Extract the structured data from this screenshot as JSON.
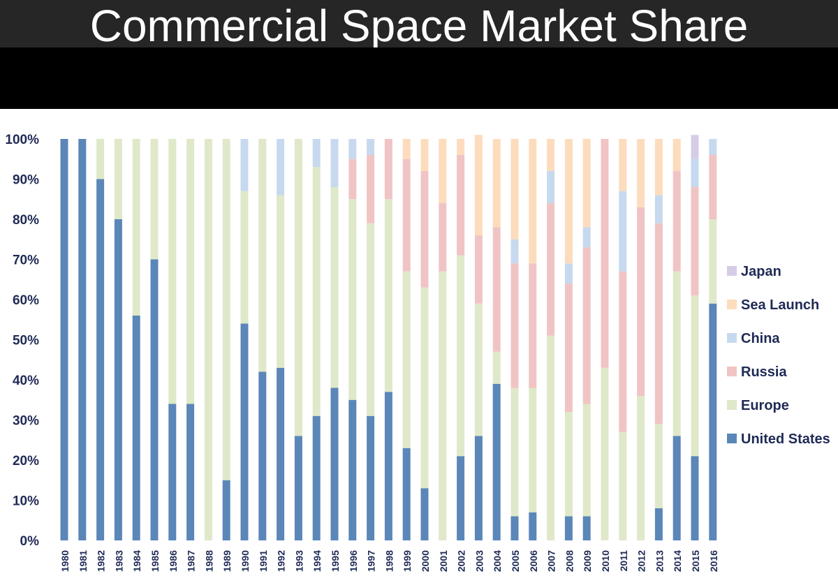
{
  "page": {
    "title": "Commercial Space Market Share"
  },
  "chart_data": {
    "type": "bar",
    "stacked": true,
    "normalized": true,
    "title": "Commercial Space Market Share",
    "xlabel": "",
    "ylabel": "",
    "ylim": [
      0,
      100
    ],
    "yticks": [
      "0%",
      "10%",
      "20%",
      "30%",
      "40%",
      "50%",
      "60%",
      "70%",
      "80%",
      "90%",
      "100%"
    ],
    "grid": false,
    "legend_position": "right",
    "categories": [
      "1980",
      "1981",
      "1982",
      "1983",
      "1984",
      "1985",
      "1986",
      "1987",
      "1988",
      "1989",
      "1990",
      "1991",
      "1992",
      "1993",
      "1994",
      "1995",
      "1996",
      "1997",
      "1998",
      "1999",
      "2000",
      "2001",
      "2002",
      "2003",
      "2004",
      "2005",
      "2006",
      "2007",
      "2008",
      "2009",
      "2010",
      "2011",
      "2012",
      "2013",
      "2014",
      "2015",
      "2016"
    ],
    "series": [
      {
        "name": "United States",
        "color": "#5b86b8",
        "values": [
          100,
          100,
          90,
          80,
          56,
          70,
          34,
          34,
          0,
          15,
          54,
          42,
          43,
          26,
          31,
          38,
          35,
          31,
          37,
          23,
          13,
          0,
          21,
          26,
          39,
          6,
          7,
          0,
          6,
          6,
          0,
          0,
          0,
          8,
          26,
          21,
          59
        ]
      },
      {
        "name": "Europe",
        "color": "#dfe8c9",
        "values": [
          0,
          0,
          10,
          20,
          44,
          30,
          66,
          66,
          100,
          85,
          33,
          58,
          43,
          74,
          62,
          50,
          50,
          48,
          48,
          44,
          50,
          67,
          50,
          33,
          8,
          32,
          31,
          51,
          26,
          28,
          43,
          27,
          36,
          21,
          41,
          40,
          21
        ]
      },
      {
        "name": "Russia",
        "color": "#f0c4c4",
        "values": [
          0,
          0,
          0,
          0,
          0,
          0,
          0,
          0,
          0,
          0,
          0,
          0,
          0,
          0,
          0,
          0,
          10,
          17,
          15,
          28,
          29,
          17,
          25,
          17,
          31,
          31,
          31,
          33,
          32,
          39,
          57,
          40,
          47,
          50,
          25,
          27,
          16
        ]
      },
      {
        "name": "China",
        "color": "#c7d9ee",
        "values": [
          0,
          0,
          0,
          0,
          0,
          0,
          0,
          0,
          0,
          0,
          13,
          0,
          14,
          0,
          7,
          12,
          5,
          4,
          0,
          0,
          0,
          0,
          0,
          0,
          0,
          6,
          0,
          8,
          5,
          5,
          0,
          20,
          0,
          7,
          0,
          7,
          4
        ]
      },
      {
        "name": "Sea Launch",
        "color": "#fcdcbd",
        "values": [
          0,
          0,
          0,
          0,
          0,
          0,
          0,
          0,
          0,
          0,
          0,
          0,
          0,
          0,
          0,
          0,
          0,
          0,
          0,
          5,
          8,
          16,
          4,
          25,
          22,
          25,
          31,
          8,
          31,
          22,
          0,
          13,
          17,
          14,
          8,
          0,
          0
        ]
      },
      {
        "name": "Japan",
        "color": "#d5cce6",
        "values": [
          0,
          0,
          0,
          0,
          0,
          0,
          0,
          0,
          0,
          0,
          0,
          0,
          0,
          0,
          0,
          0,
          0,
          0,
          0,
          0,
          0,
          0,
          0,
          0,
          0,
          0,
          0,
          0,
          0,
          0,
          0,
          0,
          0,
          0,
          0,
          6,
          0
        ]
      }
    ]
  }
}
